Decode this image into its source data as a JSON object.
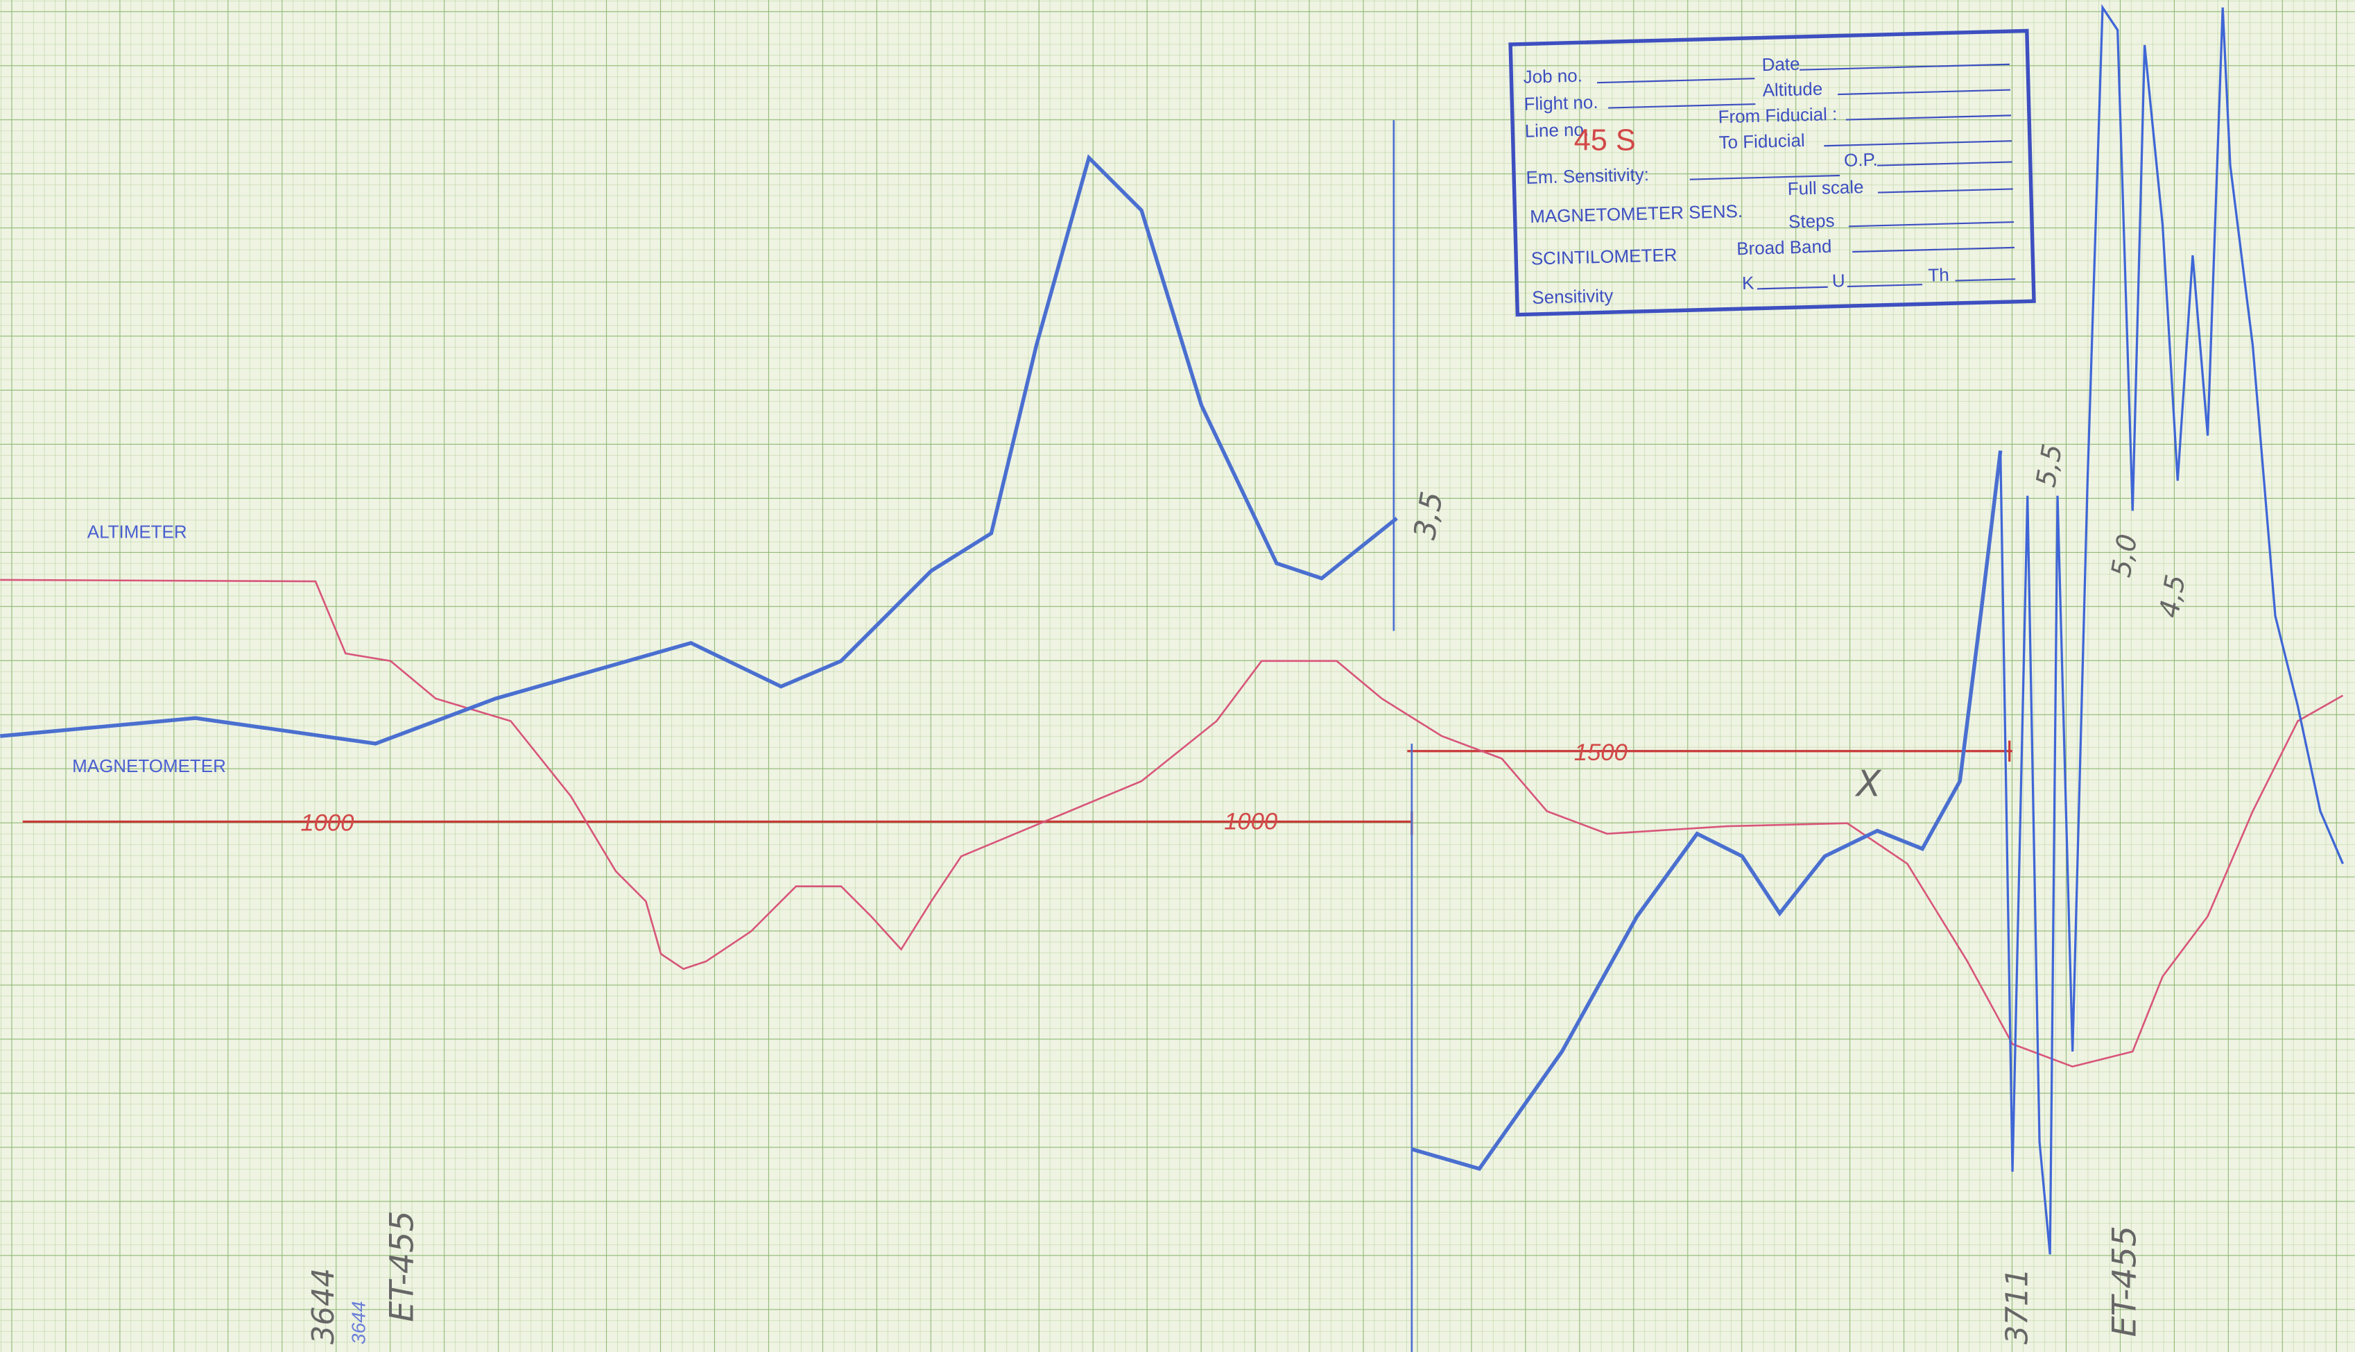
{
  "stamp": {
    "job_no": "Job no.",
    "date": "Date",
    "flight_no": "Flight no.",
    "altitude": "Altitude",
    "line_no": "Line no.",
    "from_fiducial": "From Fiducial :",
    "to_fiducial": "To Fiducial",
    "em_sensitivity": "Em. Sensitivity:",
    "op": "O.P.",
    "magnetometer_sens": "MAGNETOMETER SENS.",
    "full_scale": "Full scale",
    "steps": "Steps",
    "scintilometer": "SCINTILOMETER",
    "broad_band": "Broad Band",
    "sensitivity": "Sensitivity",
    "k": "K",
    "u": "U",
    "th": "Th"
  },
  "trace_labels": {
    "altimeter": "ALTIMETER",
    "magnetometer": "MAGNETOMETER"
  },
  "annotations": {
    "line_number": "45 S",
    "peak_a": "3,5",
    "peak_b": "5,5",
    "peak_c": "5,0",
    "peak_d": "4,5",
    "scale_left": "1000",
    "scale_mid": "1000",
    "scale_right": "1500",
    "mark": "X",
    "fiducial_left": "3644",
    "fiducial_left_small": "3644",
    "flight_left": "ET-455",
    "fiducial_right": "3711",
    "flight_right": "ET-455"
  }
}
